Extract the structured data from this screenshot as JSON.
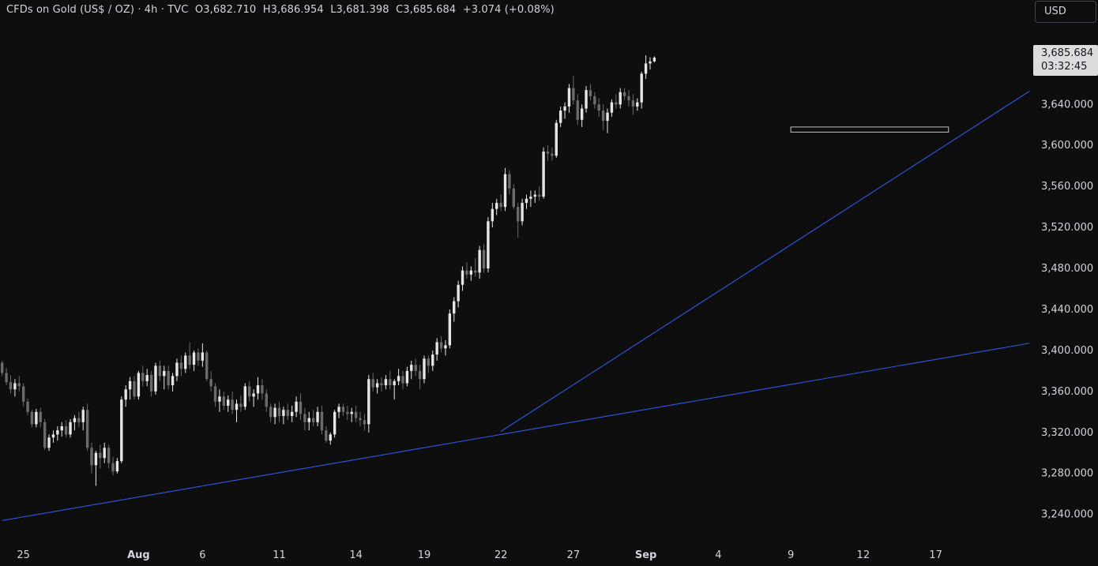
{
  "header": {
    "symbol": "CFDs on Gold (US$ / OZ)",
    "interval": "4h",
    "source": "TVC",
    "open": "O3,682.710",
    "high": "H3,686.954",
    "low": "L3,681.398",
    "close": "C3,685.684",
    "change": "+3.074 (+0.08%)",
    "separator": "·"
  },
  "currency_button": "USD",
  "last_price_tag": {
    "price": "3,685.684",
    "countdown": "03:32:45"
  },
  "colors": {
    "background": "#0e0e0f",
    "candle_up": "#e6e6e6",
    "candle_down": "#6b6b6e",
    "trendline": "#2e51d6",
    "zone_border": "#bfbfbf",
    "text": "#d1d4dc"
  },
  "chart_data": {
    "type": "candlestick",
    "timeframe": "4h",
    "y_axis": {
      "range": [
        3222,
        3688
      ],
      "ticks": [
        3240,
        3280,
        3320,
        3360,
        3400,
        3440,
        3480,
        3520,
        3560,
        3600,
        3640
      ],
      "tick_labels": [
        "3,240.000",
        "3,280.000",
        "3,320.000",
        "3,360.000",
        "3,400.000",
        "3,440.000",
        "3,480.000",
        "3,520.000",
        "3,560.000",
        "3,600.000",
        "3,640.000"
      ]
    },
    "x_axis": {
      "ticks": [
        {
          "label": "25",
          "bar": 5,
          "major": false
        },
        {
          "label": "Aug",
          "bar": 32,
          "major": true
        },
        {
          "label": "6",
          "bar": 47,
          "major": false
        },
        {
          "label": "11",
          "bar": 65,
          "major": false
        },
        {
          "label": "14",
          "bar": 83,
          "major": false
        },
        {
          "label": "19",
          "bar": 99,
          "major": false
        },
        {
          "label": "22",
          "bar": 117,
          "major": false
        },
        {
          "label": "27",
          "bar": 134,
          "major": false
        },
        {
          "label": "Sep",
          "bar": 151,
          "major": true
        },
        {
          "label": "4",
          "bar": 168,
          "major": false
        },
        {
          "label": "9",
          "bar": 185,
          "major": false
        },
        {
          "label": "12",
          "bar": 202,
          "major": false
        },
        {
          "label": "17",
          "bar": 219,
          "major": false
        }
      ],
      "range": [
        -0.5,
        241.5
      ]
    },
    "last_price": 3685.684,
    "candles": [
      [
        3388,
        3390,
        3375,
        3378
      ],
      [
        3378,
        3383,
        3366,
        3369
      ],
      [
        3369,
        3376,
        3358,
        3362
      ],
      [
        3362,
        3372,
        3355,
        3368
      ],
      [
        3368,
        3375,
        3360,
        3365
      ],
      [
        3365,
        3368,
        3345,
        3350
      ],
      [
        3350,
        3353,
        3337,
        3340
      ],
      [
        3340,
        3342,
        3325,
        3328
      ],
      [
        3328,
        3343,
        3325,
        3340
      ],
      [
        3340,
        3344,
        3325,
        3330
      ],
      [
        3330,
        3333,
        3303,
        3305
      ],
      [
        3305,
        3318,
        3302,
        3315
      ],
      [
        3315,
        3322,
        3310,
        3318
      ],
      [
        3318,
        3326,
        3312,
        3322
      ],
      [
        3322,
        3330,
        3316,
        3326
      ],
      [
        3326,
        3332,
        3315,
        3318
      ],
      [
        3318,
        3333,
        3315,
        3330
      ],
      [
        3330,
        3337,
        3322,
        3334
      ],
      [
        3334,
        3340,
        3325,
        3330
      ],
      [
        3330,
        3345,
        3322,
        3342
      ],
      [
        3342,
        3348,
        3302,
        3305
      ],
      [
        3305,
        3310,
        3280,
        3288
      ],
      [
        3288,
        3302,
        3268,
        3300
      ],
      [
        3300,
        3308,
        3285,
        3295
      ],
      [
        3295,
        3310,
        3290,
        3305
      ],
      [
        3305,
        3308,
        3285,
        3290
      ],
      [
        3290,
        3296,
        3278,
        3282
      ],
      [
        3282,
        3295,
        3280,
        3292
      ],
      [
        3292,
        3355,
        3290,
        3352
      ],
      [
        3352,
        3366,
        3345,
        3362
      ],
      [
        3362,
        3374,
        3352,
        3370
      ],
      [
        3370,
        3375,
        3352,
        3355
      ],
      [
        3355,
        3380,
        3352,
        3378
      ],
      [
        3378,
        3385,
        3365,
        3370
      ],
      [
        3370,
        3382,
        3365,
        3376
      ],
      [
        3376,
        3380,
        3355,
        3360
      ],
      [
        3360,
        3388,
        3357,
        3385
      ],
      [
        3385,
        3390,
        3370,
        3375
      ],
      [
        3375,
        3385,
        3362,
        3380
      ],
      [
        3380,
        3385,
        3362,
        3366
      ],
      [
        3366,
        3378,
        3360,
        3375
      ],
      [
        3375,
        3392,
        3370,
        3388
      ],
      [
        3388,
        3395,
        3375,
        3382
      ],
      [
        3382,
        3398,
        3378,
        3395
      ],
      [
        3395,
        3408,
        3382,
        3386
      ],
      [
        3386,
        3400,
        3380,
        3398
      ],
      [
        3398,
        3402,
        3385,
        3390
      ],
      [
        3390,
        3407,
        3384,
        3398
      ],
      [
        3398,
        3400,
        3370,
        3372
      ],
      [
        3372,
        3380,
        3360,
        3365
      ],
      [
        3365,
        3368,
        3345,
        3350
      ],
      [
        3350,
        3362,
        3340,
        3355
      ],
      [
        3355,
        3360,
        3342,
        3346
      ],
      [
        3346,
        3356,
        3340,
        3352
      ],
      [
        3352,
        3360,
        3338,
        3342
      ],
      [
        3342,
        3352,
        3330,
        3348
      ],
      [
        3348,
        3356,
        3340,
        3345
      ],
      [
        3345,
        3368,
        3342,
        3365
      ],
      [
        3365,
        3370,
        3350,
        3355
      ],
      [
        3355,
        3362,
        3345,
        3358
      ],
      [
        3358,
        3374,
        3352,
        3366
      ],
      [
        3366,
        3372,
        3352,
        3358
      ],
      [
        3358,
        3362,
        3340,
        3345
      ],
      [
        3345,
        3348,
        3330,
        3335
      ],
      [
        3335,
        3348,
        3328,
        3344
      ],
      [
        3344,
        3350,
        3330,
        3336
      ],
      [
        3336,
        3345,
        3328,
        3342
      ],
      [
        3342,
        3348,
        3332,
        3336
      ],
      [
        3336,
        3346,
        3330,
        3340
      ],
      [
        3340,
        3355,
        3335,
        3350
      ],
      [
        3350,
        3358,
        3332,
        3338
      ],
      [
        3338,
        3344,
        3322,
        3330
      ],
      [
        3330,
        3340,
        3322,
        3334
      ],
      [
        3334,
        3342,
        3326,
        3330
      ],
      [
        3330,
        3345,
        3326,
        3340
      ],
      [
        3340,
        3346,
        3318,
        3322
      ],
      [
        3322,
        3326,
        3310,
        3312
      ],
      [
        3312,
        3320,
        3308,
        3318
      ],
      [
        3318,
        3342,
        3315,
        3340
      ],
      [
        3340,
        3348,
        3334,
        3345
      ],
      [
        3345,
        3348,
        3336,
        3340
      ],
      [
        3340,
        3346,
        3332,
        3338
      ],
      [
        3338,
        3344,
        3330,
        3340
      ],
      [
        3340,
        3346,
        3330,
        3334
      ],
      [
        3334,
        3340,
        3326,
        3332
      ],
      [
        3332,
        3338,
        3322,
        3328
      ],
      [
        3328,
        3376,
        3320,
        3372
      ],
      [
        3372,
        3378,
        3360,
        3364
      ],
      [
        3364,
        3372,
        3358,
        3368
      ],
      [
        3368,
        3374,
        3360,
        3366
      ],
      [
        3366,
        3376,
        3362,
        3372
      ],
      [
        3372,
        3380,
        3362,
        3366
      ],
      [
        3366,
        3372,
        3352,
        3370
      ],
      [
        3370,
        3382,
        3366,
        3375
      ],
      [
        3375,
        3380,
        3362,
        3368
      ],
      [
        3368,
        3384,
        3365,
        3380
      ],
      [
        3380,
        3390,
        3372,
        3386
      ],
      [
        3386,
        3392,
        3375,
        3380
      ],
      [
        3380,
        3386,
        3362,
        3372
      ],
      [
        3372,
        3395,
        3368,
        3392
      ],
      [
        3392,
        3395,
        3378,
        3385
      ],
      [
        3385,
        3400,
        3380,
        3396
      ],
      [
        3396,
        3412,
        3390,
        3408
      ],
      [
        3408,
        3414,
        3398,
        3402
      ],
      [
        3402,
        3410,
        3395,
        3405
      ],
      [
        3405,
        3440,
        3402,
        3436
      ],
      [
        3436,
        3452,
        3428,
        3448
      ],
      [
        3448,
        3468,
        3442,
        3464
      ],
      [
        3464,
        3482,
        3458,
        3478
      ],
      [
        3478,
        3486,
        3470,
        3474
      ],
      [
        3474,
        3482,
        3468,
        3478
      ],
      [
        3478,
        3490,
        3472,
        3476
      ],
      [
        3476,
        3502,
        3470,
        3498
      ],
      [
        3498,
        3504,
        3476,
        3480
      ],
      [
        3480,
        3530,
        3476,
        3526
      ],
      [
        3526,
        3544,
        3520,
        3538
      ],
      [
        3538,
        3548,
        3532,
        3544
      ],
      [
        3544,
        3552,
        3536,
        3540
      ],
      [
        3540,
        3578,
        3536,
        3572
      ],
      [
        3572,
        3576,
        3552,
        3558
      ],
      [
        3558,
        3562,
        3538,
        3540
      ],
      [
        3540,
        3544,
        3510,
        3526
      ],
      [
        3526,
        3548,
        3522,
        3544
      ],
      [
        3544,
        3552,
        3538,
        3548
      ],
      [
        3548,
        3556,
        3540,
        3550
      ],
      [
        3550,
        3556,
        3544,
        3552
      ],
      [
        3552,
        3560,
        3546,
        3550
      ],
      [
        3550,
        3598,
        3548,
        3594
      ],
      [
        3594,
        3600,
        3585,
        3592
      ],
      [
        3592,
        3598,
        3585,
        3590
      ],
      [
        3590,
        3625,
        3588,
        3622
      ],
      [
        3622,
        3638,
        3618,
        3634
      ],
      [
        3634,
        3642,
        3626,
        3638
      ],
      [
        3638,
        3660,
        3632,
        3656
      ],
      [
        3656,
        3668,
        3640,
        3644
      ],
      [
        3644,
        3650,
        3620,
        3625
      ],
      [
        3625,
        3640,
        3618,
        3636
      ],
      [
        3636,
        3658,
        3632,
        3654
      ],
      [
        3654,
        3660,
        3644,
        3648
      ],
      [
        3648,
        3652,
        3636,
        3640
      ],
      [
        3640,
        3646,
        3628,
        3634
      ],
      [
        3634,
        3640,
        3615,
        3624
      ],
      [
        3624,
        3636,
        3612,
        3632
      ],
      [
        3632,
        3645,
        3628,
        3642
      ],
      [
        3642,
        3650,
        3636,
        3640
      ],
      [
        3640,
        3656,
        3636,
        3652
      ],
      [
        3652,
        3656,
        3644,
        3648
      ],
      [
        3648,
        3654,
        3638,
        3644
      ],
      [
        3644,
        3650,
        3630,
        3638
      ],
      [
        3638,
        3646,
        3634,
        3642
      ],
      [
        3642,
        3672,
        3636,
        3670
      ],
      [
        3670,
        3688,
        3665,
        3680
      ],
      [
        3680,
        3686,
        3674,
        3682
      ],
      [
        3682,
        3687,
        3681,
        3685.684
      ]
    ],
    "trendlines": [
      {
        "points": [
          [
            0,
            3234
          ],
          [
            241,
            3407
          ]
        ]
      },
      {
        "points": [
          [
            117,
            3321
          ],
          [
            241,
            3653
          ]
        ]
      }
    ],
    "support_zone": {
      "x_from": 185,
      "x_to": 222,
      "y_from": 3613,
      "y_to": 3618
    }
  }
}
